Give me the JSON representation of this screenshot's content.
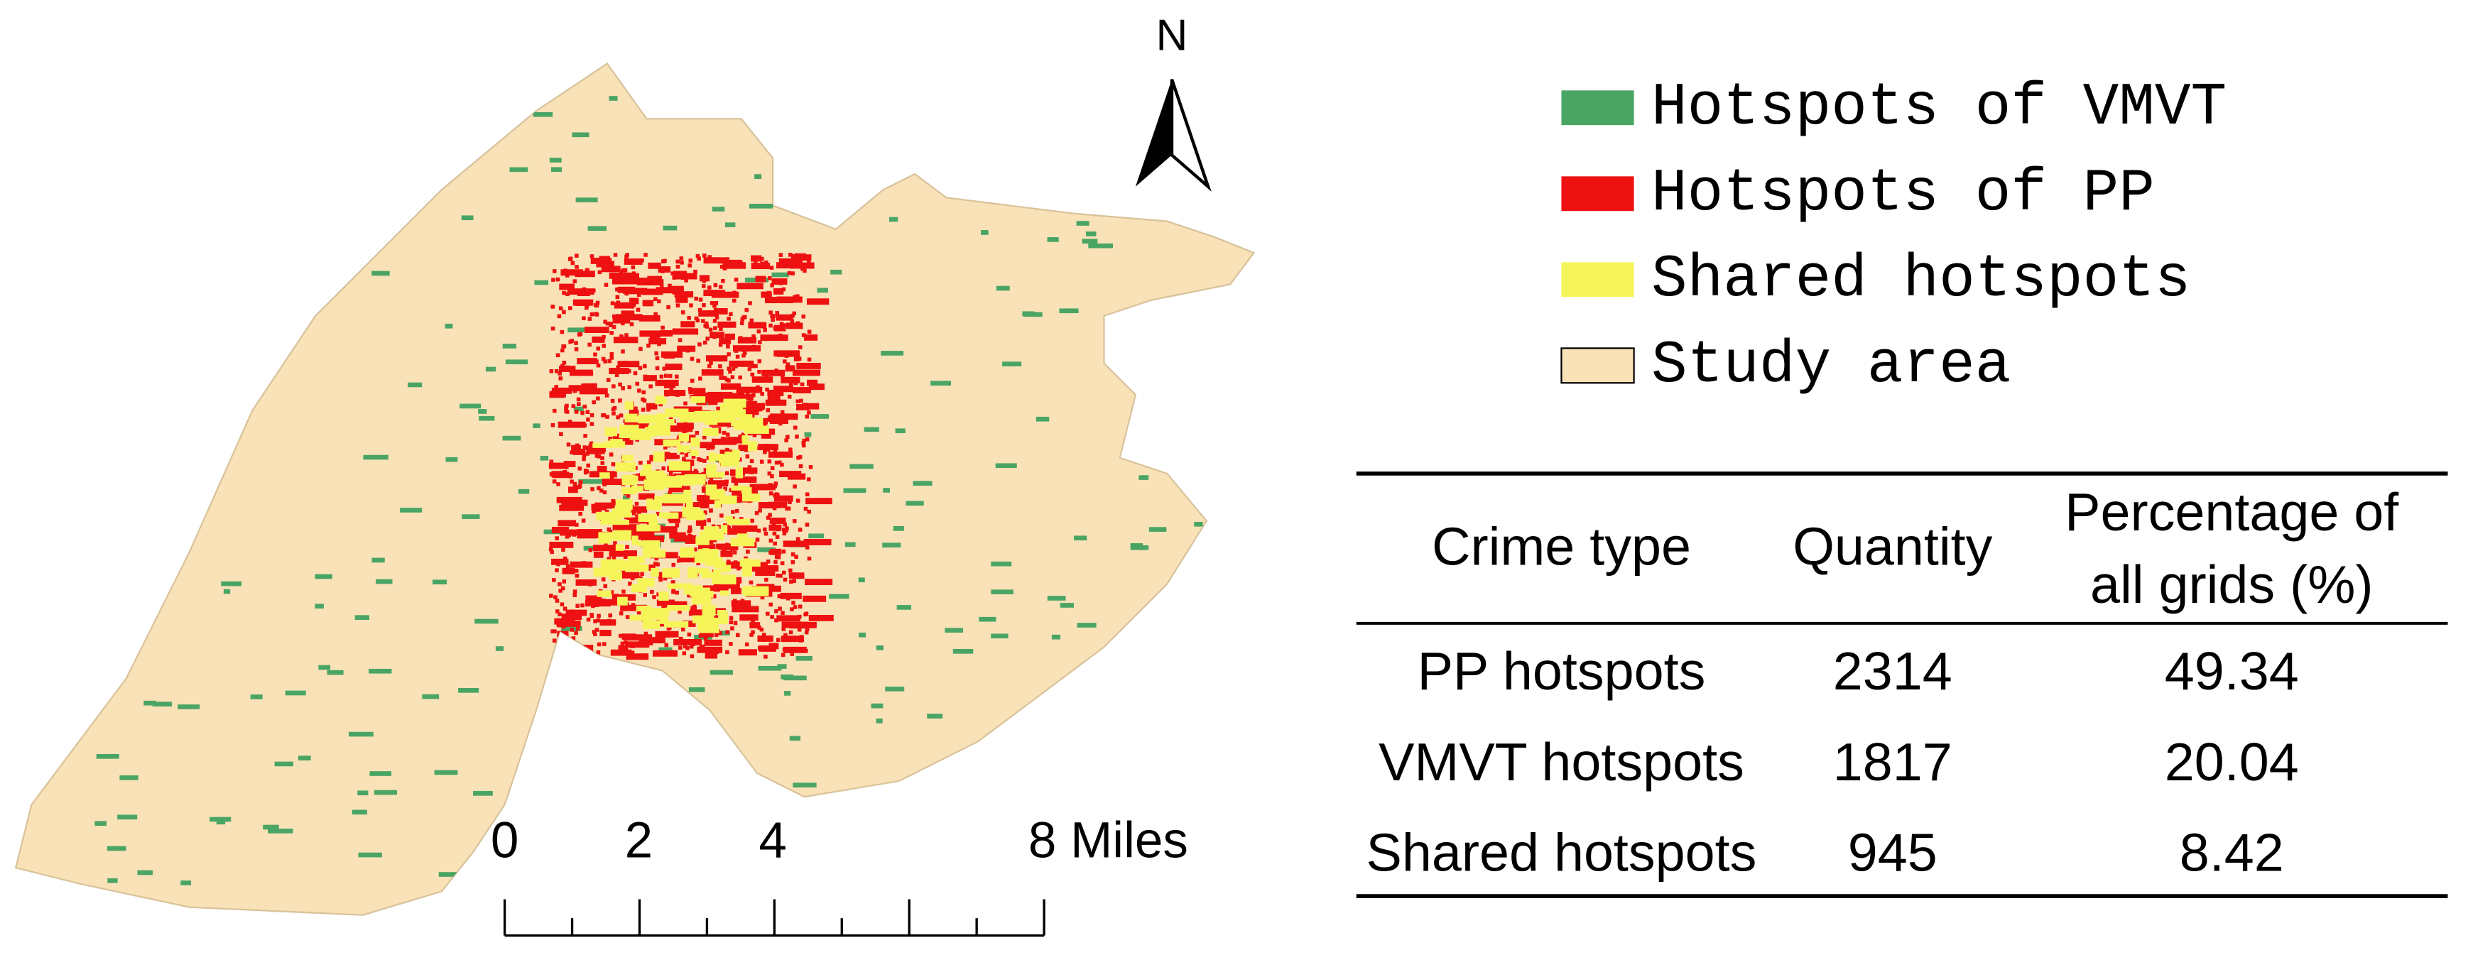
{
  "north_label": "N",
  "scale_bar": {
    "labels": [
      "0",
      "2",
      "4",
      "8 Miles"
    ]
  },
  "legend": {
    "items": [
      "Hotspots of VMVT",
      "Hotspots of PP",
      "Shared hotspots",
      "Study area"
    ]
  },
  "table": {
    "header": [
      "Crime type",
      "Quantity",
      [
        "Percentage of",
        "all grids (%)"
      ]
    ],
    "rows": [
      [
        "PP hotspots",
        "2314",
        "49.34"
      ],
      [
        "VMVT hotspots",
        "1817",
        "20.04"
      ],
      [
        "Shared hotspots",
        "945",
        "8.42"
      ]
    ]
  }
}
